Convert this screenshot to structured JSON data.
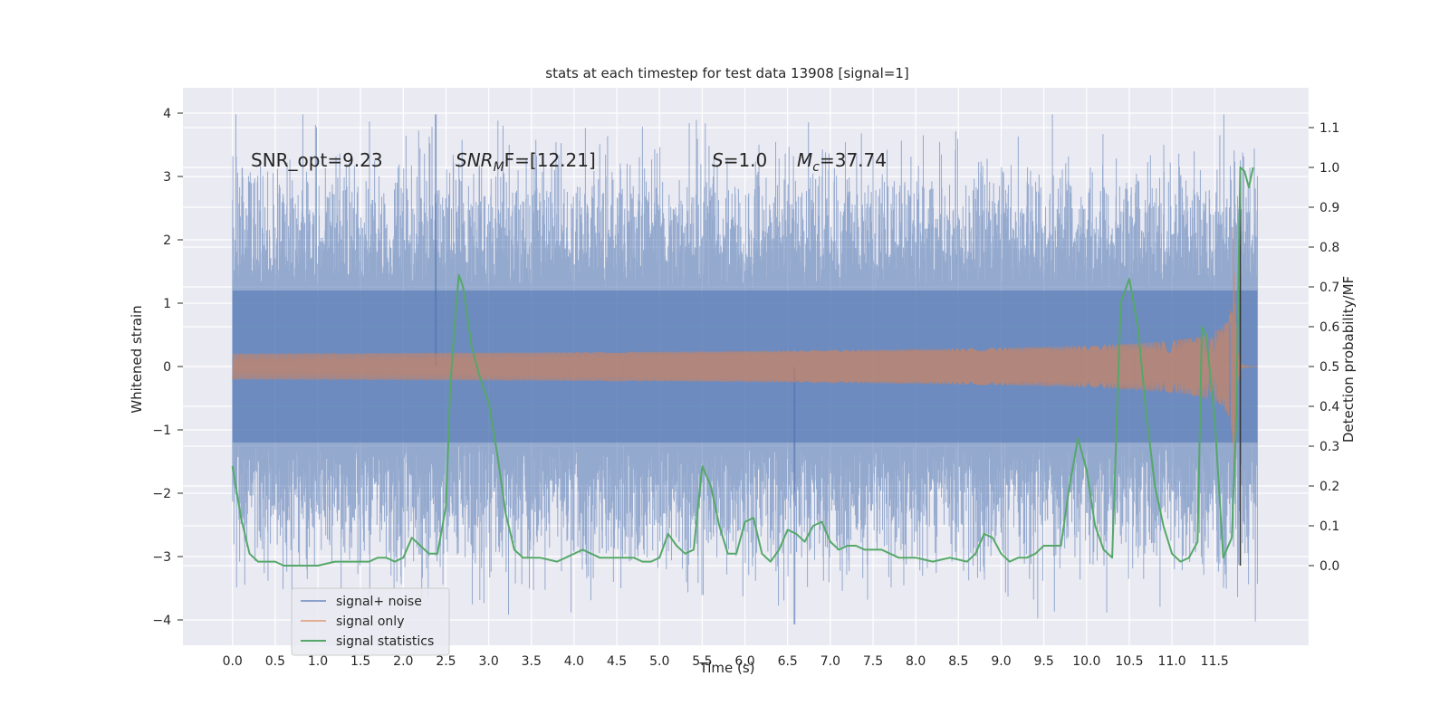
{
  "chart_data": {
    "type": "line",
    "title": "stats at each timestep for test data 13908 [signal=1]",
    "xlabel": "Time (s)",
    "ylabel_left": "Whitened strain",
    "ylabel_right": "Detection probability/MF",
    "xlim": [
      -0.58,
      12.6
    ],
    "ylim_left": [
      -4.4,
      4.4
    ],
    "ylim_right": [
      -0.2,
      1.2
    ],
    "x_ticks": [
      0.0,
      0.5,
      1.0,
      1.5,
      2.0,
      2.5,
      3.0,
      3.5,
      4.0,
      4.5,
      5.0,
      5.5,
      6.0,
      6.5,
      7.0,
      7.5,
      8.0,
      8.5,
      9.0,
      9.5,
      10.0,
      10.5,
      11.0,
      11.5
    ],
    "x_tick_labels": [
      "0.0",
      "0.5",
      "1.0",
      "1.5",
      "2.0",
      "2.5",
      "3.0",
      "3.5",
      "4.0",
      "4.5",
      "5.0",
      "5.5",
      "6.0",
      "6.5",
      "7.0",
      "7.5",
      "8.0",
      "8.5",
      "9.0",
      "9.5",
      "10.0",
      "10.5",
      "11.0",
      "11.5"
    ],
    "y_ticks_left": [
      4,
      3,
      2,
      1,
      0,
      -1,
      -2,
      -3,
      -4
    ],
    "y_tick_labels_left": [
      "4",
      "3",
      "2",
      "1",
      "0",
      "−1",
      "−2",
      "−3",
      "−4"
    ],
    "y_ticks_right": [
      1.1,
      1.0,
      0.9,
      0.8,
      0.7,
      0.6,
      0.5,
      0.4,
      0.3,
      0.2,
      0.1,
      0.0
    ],
    "y_tick_labels_right": [
      "1.1",
      "1.0",
      "0.9",
      "0.8",
      "0.7",
      "0.6",
      "0.5",
      "0.4",
      "0.3",
      "0.2",
      "0.1",
      "0.0"
    ],
    "grid": true,
    "legend_position": "lower-left",
    "annotations": {
      "snr_opt": "SNR_opt=9.23",
      "snr_mf_sym": "SNR",
      "snr_mf_sub": "M",
      "snr_mf_rest": "F=[12.21]",
      "s_sym": "S",
      "s_rest": "=1.0",
      "mc_sym": "M",
      "mc_sub": "c",
      "mc_rest": "=37.74"
    },
    "series": [
      {
        "name": "signal+ noise",
        "color": "#4c72b0",
        "axis": "left",
        "x_range": [
          0.0,
          12.0
        ],
        "band_typical": [
          -1.2,
          1.2
        ],
        "spike_max": 3.98,
        "spike_min": -4.07
      },
      {
        "name": "signal only",
        "color": "#dd8452",
        "axis": "left",
        "x_range": [
          0.0,
          12.0
        ],
        "peak_amplitude": 2.2,
        "peak_time": 11.72
      },
      {
        "name": "signal statistics",
        "color": "#55a868",
        "axis": "right",
        "x": [
          0.0,
          0.1,
          0.2,
          0.3,
          0.4,
          0.5,
          0.6,
          0.8,
          1.0,
          1.2,
          1.4,
          1.6,
          1.7,
          1.8,
          1.9,
          2.0,
          2.1,
          2.2,
          2.3,
          2.4,
          2.5,
          2.55,
          2.6,
          2.65,
          2.7,
          2.8,
          2.9,
          3.0,
          3.1,
          3.2,
          3.3,
          3.4,
          3.5,
          3.6,
          3.8,
          4.0,
          4.1,
          4.2,
          4.3,
          4.4,
          4.5,
          4.6,
          4.7,
          4.8,
          4.9,
          5.0,
          5.1,
          5.2,
          5.3,
          5.4,
          5.5,
          5.6,
          5.7,
          5.8,
          5.9,
          6.0,
          6.1,
          6.2,
          6.3,
          6.4,
          6.5,
          6.6,
          6.7,
          6.8,
          6.9,
          7.0,
          7.1,
          7.2,
          7.3,
          7.4,
          7.5,
          7.6,
          7.7,
          7.8,
          8.0,
          8.2,
          8.4,
          8.6,
          8.7,
          8.8,
          8.9,
          9.0,
          9.1,
          9.2,
          9.3,
          9.4,
          9.5,
          9.6,
          9.7,
          9.8,
          9.9,
          10.0,
          10.1,
          10.2,
          10.3,
          10.4,
          10.5,
          10.6,
          10.7,
          10.8,
          10.9,
          11.0,
          11.1,
          11.2,
          11.3,
          11.35,
          11.4,
          11.5,
          11.6,
          11.7,
          11.75,
          11.8,
          11.85,
          11.9,
          11.95
        ],
        "values": [
          0.25,
          0.12,
          0.03,
          0.01,
          0.01,
          0.01,
          0.0,
          0.0,
          0.0,
          0.01,
          0.01,
          0.01,
          0.02,
          0.02,
          0.01,
          0.02,
          0.07,
          0.05,
          0.03,
          0.03,
          0.15,
          0.45,
          0.6,
          0.73,
          0.7,
          0.55,
          0.47,
          0.41,
          0.28,
          0.13,
          0.04,
          0.02,
          0.02,
          0.02,
          0.01,
          0.03,
          0.04,
          0.03,
          0.02,
          0.02,
          0.02,
          0.02,
          0.02,
          0.01,
          0.01,
          0.02,
          0.08,
          0.05,
          0.03,
          0.04,
          0.25,
          0.2,
          0.1,
          0.03,
          0.03,
          0.11,
          0.12,
          0.03,
          0.01,
          0.04,
          0.09,
          0.08,
          0.06,
          0.1,
          0.11,
          0.06,
          0.04,
          0.05,
          0.05,
          0.04,
          0.04,
          0.04,
          0.03,
          0.02,
          0.02,
          0.01,
          0.02,
          0.01,
          0.03,
          0.08,
          0.07,
          0.03,
          0.01,
          0.02,
          0.02,
          0.03,
          0.05,
          0.05,
          0.05,
          0.2,
          0.32,
          0.24,
          0.1,
          0.04,
          0.02,
          0.66,
          0.72,
          0.6,
          0.38,
          0.2,
          0.1,
          0.03,
          0.01,
          0.02,
          0.06,
          0.6,
          0.58,
          0.37,
          0.02,
          0.07,
          0.35,
          1.0,
          0.99,
          0.95,
          1.0
        ]
      }
    ]
  }
}
